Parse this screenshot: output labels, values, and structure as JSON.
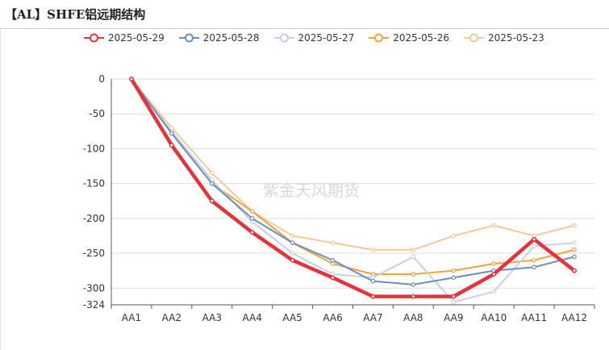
{
  "title": "【AL】SHFE铝远期结构",
  "watermark": "紫金天风期货",
  "chart_data": {
    "type": "line",
    "title": "【AL】SHFE铝远期结构",
    "categories": [
      "AA1",
      "AA2",
      "AA3",
      "AA4",
      "AA5",
      "AA6",
      "AA7",
      "AA8",
      "AA9",
      "AA10",
      "AA11",
      "AA12"
    ],
    "ylim": [
      -324,
      0
    ],
    "yticks": [
      0,
      -50,
      -100,
      -150,
      -200,
      -250,
      -300,
      -324
    ],
    "grid": true,
    "legend_position": "top",
    "series": [
      {
        "name": "2025-05-29",
        "color": "#e8313a",
        "emphasis": true,
        "values": [
          0,
          -95,
          -175,
          -220,
          -260,
          -285,
          -312,
          -312,
          -312,
          -280,
          -230,
          -275
        ]
      },
      {
        "name": "2025-05-28",
        "color": "#6a8fbd",
        "emphasis": false,
        "values": [
          0,
          -78,
          -150,
          -200,
          -235,
          -260,
          -290,
          -295,
          -285,
          -275,
          -270,
          -255
        ]
      },
      {
        "name": "2025-05-27",
        "color": "#c2d2ea",
        "emphasis": false,
        "values": [
          0,
          -75,
          -145,
          -205,
          -250,
          -280,
          -285,
          -255,
          -320,
          -305,
          -240,
          -235
        ]
      },
      {
        "name": "2025-05-26",
        "color": "#f2a23c",
        "emphasis": false,
        "values": [
          0,
          -78,
          -150,
          -190,
          -235,
          -265,
          -280,
          -280,
          -275,
          -265,
          -260,
          -245
        ]
      },
      {
        "name": "2025-05-23",
        "color": "#f5c89a",
        "emphasis": false,
        "values": [
          0,
          -70,
          -135,
          -190,
          -225,
          -235,
          -245,
          -245,
          -225,
          -210,
          -225,
          -210
        ]
      }
    ]
  }
}
